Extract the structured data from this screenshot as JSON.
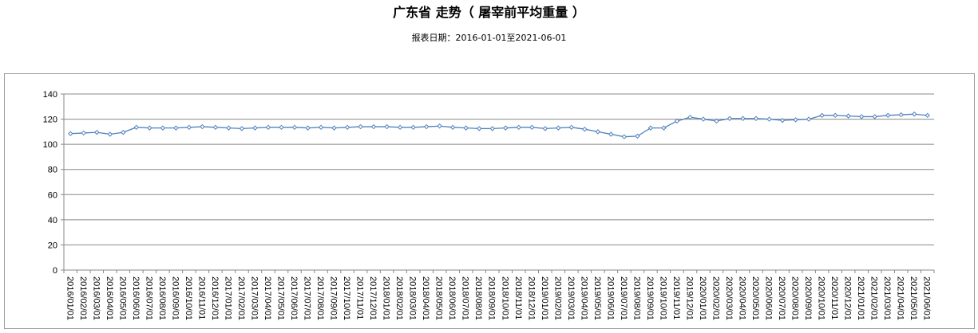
{
  "title": "广东省 走势（ 屠宰前平均重量 ）",
  "subtitle": "报表日期：2016-01-01至2021-06-01",
  "chart_data": {
    "type": "line",
    "ylim": [
      0,
      140
    ],
    "yticks": [
      0,
      20,
      40,
      60,
      80,
      100,
      120,
      140
    ],
    "grid": true,
    "line_color": "#4f81bd",
    "categories": [
      "2016/01/01",
      "2016/02/01",
      "2016/03/01",
      "2016/04/01",
      "2016/05/01",
      "2016/06/01",
      "2016/07/01",
      "2016/08/01",
      "2016/09/01",
      "2016/10/01",
      "2016/11/01",
      "2016/12/01",
      "2017/01/01",
      "2017/02/01",
      "2017/03/01",
      "2017/04/01",
      "2017/05/01",
      "2017/06/01",
      "2017/07/01",
      "2017/08/01",
      "2017/09/01",
      "2017/10/01",
      "2017/11/01",
      "2017/12/01",
      "2018/01/01",
      "2018/02/01",
      "2018/03/01",
      "2018/04/01",
      "2018/05/01",
      "2018/06/01",
      "2018/07/01",
      "2018/08/01",
      "2018/09/01",
      "2018/10/01",
      "2018/11/01",
      "2018/12/01",
      "2019/01/01",
      "2019/02/01",
      "2019/03/01",
      "2019/04/01",
      "2019/05/01",
      "2019/06/01",
      "2019/07/01",
      "2019/08/01",
      "2019/09/01",
      "2019/10/01",
      "2019/11/01",
      "2019/12/01",
      "2020/01/01",
      "2020/02/01",
      "2020/03/01",
      "2020/04/01",
      "2020/05/01",
      "2020/06/01",
      "2020/07/01",
      "2020/08/01",
      "2020/09/01",
      "2020/10/01",
      "2020/11/01",
      "2020/12/01",
      "2021/01/01",
      "2021/02/01",
      "2021/03/01",
      "2021/04/01",
      "2021/05/01",
      "2021/06/01"
    ],
    "values": [
      108.5,
      109,
      109.5,
      108,
      109.5,
      113.5,
      113,
      113,
      113,
      113.5,
      114,
      113.5,
      113,
      112.5,
      113,
      113.5,
      113.5,
      113.5,
      113,
      113.5,
      113,
      113.5,
      114,
      114,
      114,
      113.5,
      113.5,
      114,
      114.5,
      113.5,
      113,
      112.5,
      112.5,
      113,
      113.5,
      113.5,
      112.5,
      113,
      113.5,
      112,
      110,
      108,
      106,
      106.5,
      113,
      113,
      118.5,
      121.5,
      120,
      118.5,
      120.5,
      120.5,
      120.5,
      120,
      119,
      119.5,
      120,
      123,
      123,
      122.5,
      122,
      122,
      123,
      123.5,
      124,
      123
    ]
  }
}
